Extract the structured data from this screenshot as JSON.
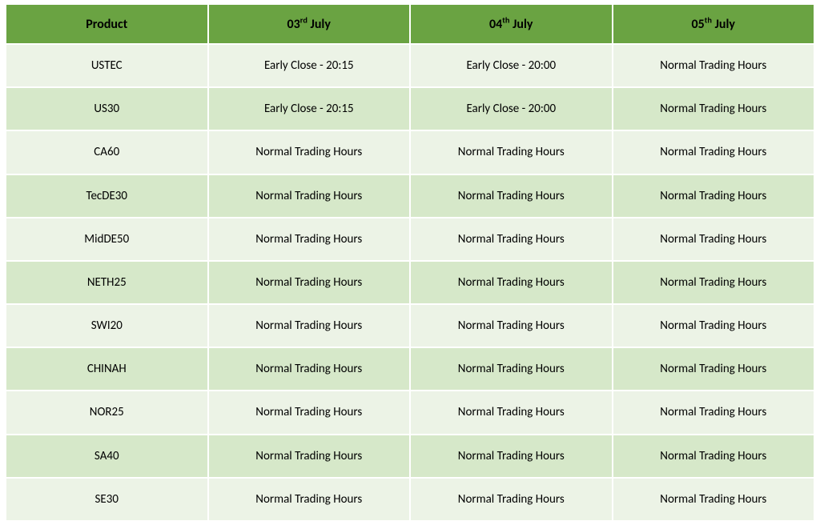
{
  "colors": {
    "header_bg": "#6aa342",
    "header_text": "#000000",
    "row_odd": "#ecf3e6",
    "row_even": "#d6e8c9",
    "cell_text": "#000000"
  },
  "columns": [
    {
      "label": "Product"
    },
    {
      "day": "03",
      "ord": "rd",
      "month": "July"
    },
    {
      "day": "04",
      "ord": "th",
      "month": "July"
    },
    {
      "day": "05",
      "ord": "th",
      "month": "July"
    }
  ],
  "rows": [
    {
      "product": "USTEC",
      "c1": "Early Close - 20:15",
      "c2": "Early Close - 20:00",
      "c3": "Normal Trading Hours"
    },
    {
      "product": "US30",
      "c1": "Early Close - 20:15",
      "c2": "Early Close - 20:00",
      "c3": "Normal Trading Hours"
    },
    {
      "product": "CA60",
      "c1": "Normal Trading Hours",
      "c2": "Normal Trading Hours",
      "c3": "Normal Trading Hours"
    },
    {
      "product": "TecDE30",
      "c1": "Normal Trading Hours",
      "c2": "Normal Trading Hours",
      "c3": "Normal Trading Hours"
    },
    {
      "product": "MidDE50",
      "c1": "Normal Trading Hours",
      "c2": "Normal Trading Hours",
      "c3": "Normal Trading Hours"
    },
    {
      "product": "NETH25",
      "c1": "Normal Trading Hours",
      "c2": "Normal Trading Hours",
      "c3": "Normal Trading Hours"
    },
    {
      "product": "SWI20",
      "c1": "Normal Trading Hours",
      "c2": "Normal Trading Hours",
      "c3": "Normal Trading Hours"
    },
    {
      "product": "CHINAH",
      "c1": "Normal Trading Hours",
      "c2": "Normal Trading Hours",
      "c3": "Normal Trading Hours"
    },
    {
      "product": "NOR25",
      "c1": "Normal Trading Hours",
      "c2": "Normal Trading Hours",
      "c3": "Normal Trading Hours"
    },
    {
      "product": "SA40",
      "c1": "Normal Trading Hours",
      "c2": "Normal Trading Hours",
      "c3": "Normal Trading Hours"
    },
    {
      "product": "SE30",
      "c1": "Normal Trading Hours",
      "c2": "Normal Trading Hours",
      "c3": "Normal Trading Hours"
    }
  ]
}
